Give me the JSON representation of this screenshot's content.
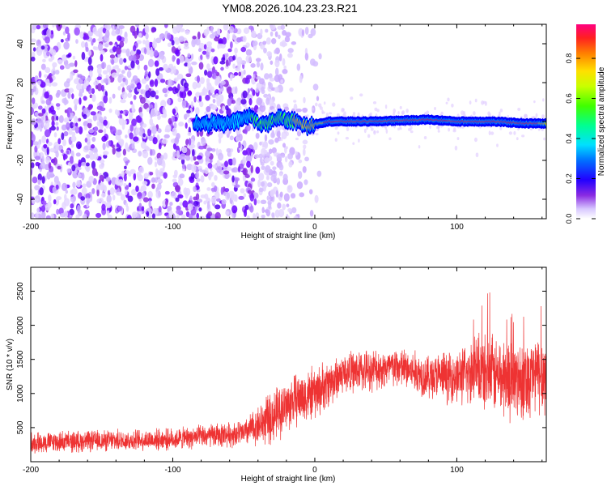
{
  "title": "YM08.2026.104.23.23.R21",
  "chart_data": [
    {
      "type": "heatmap",
      "name": "spectrogram",
      "xlabel": "Height of straight line (km)",
      "ylabel": "Frequency (Hz)",
      "xlim": [
        -200,
        163
      ],
      "ylim": [
        -50,
        50
      ],
      "xticks": [
        -200,
        -100,
        0,
        100
      ],
      "yticks": [
        -40,
        -20,
        0,
        20,
        40
      ],
      "colorbar": {
        "label": "Normalized spectral amplitude",
        "range": [
          0,
          0.97
        ],
        "ticks": [
          0.0,
          0.2,
          0.4,
          0.6,
          0.8
        ],
        "colors": [
          "#ffffff",
          "#d9c2ff",
          "#8a2be2",
          "#5a00ff",
          "#0000ff",
          "#00c8ff",
          "#00ff80",
          "#80ff00",
          "#ffff00",
          "#ffa000",
          "#ff4000",
          "#ff0060"
        ]
      },
      "noise_region": {
        "x_from": -200,
        "x_to": -40,
        "x_fade_end": -25
      },
      "signal_track": [
        {
          "x": -85,
          "freq": -1,
          "amp": 0.45
        },
        {
          "x": -60,
          "freq": -1,
          "amp": 0.5
        },
        {
          "x": -45,
          "freq": 3,
          "amp": 0.55
        },
        {
          "x": -38,
          "freq": -2,
          "amp": 0.6
        },
        {
          "x": -25,
          "freq": 2,
          "amp": 0.65
        },
        {
          "x": -15,
          "freq": 0,
          "amp": 0.7
        },
        {
          "x": -5,
          "freq": -2,
          "amp": 0.72
        },
        {
          "x": 10,
          "freq": 0,
          "amp": 0.85
        },
        {
          "x": 40,
          "freq": 0,
          "amp": 0.9
        },
        {
          "x": 80,
          "freq": 1,
          "amp": 0.92
        },
        {
          "x": 100,
          "freq": 0,
          "amp": 0.9
        },
        {
          "x": 125,
          "freq": 0,
          "amp": 0.88
        },
        {
          "x": 150,
          "freq": -1,
          "amp": 0.85
        },
        {
          "x": 163,
          "freq": -1,
          "amp": 0.8
        }
      ]
    },
    {
      "type": "line",
      "name": "snr",
      "xlabel": "Height of straight line (km)",
      "ylabel": "SNR (10 * v/v)",
      "xlim": [
        -200,
        163
      ],
      "ylim": [
        0,
        2850
      ],
      "xticks": [
        -200,
        -100,
        0,
        100
      ],
      "yticks": [
        500,
        1000,
        1500,
        2000,
        2500
      ],
      "color": "#ee3333",
      "envelope": {
        "x": [
          -200,
          -100,
          -50,
          -30,
          -15,
          0,
          10,
          20,
          40,
          60,
          80,
          100,
          120,
          140,
          163
        ],
        "mean": [
          280,
          330,
          420,
          650,
          900,
          1000,
          1150,
          1300,
          1350,
          1380,
          1250,
          1250,
          1300,
          1200,
          1300
        ],
        "spread": [
          180,
          180,
          220,
          450,
          450,
          450,
          400,
          350,
          350,
          350,
          380,
          450,
          650,
          700,
          700
        ]
      }
    }
  ]
}
